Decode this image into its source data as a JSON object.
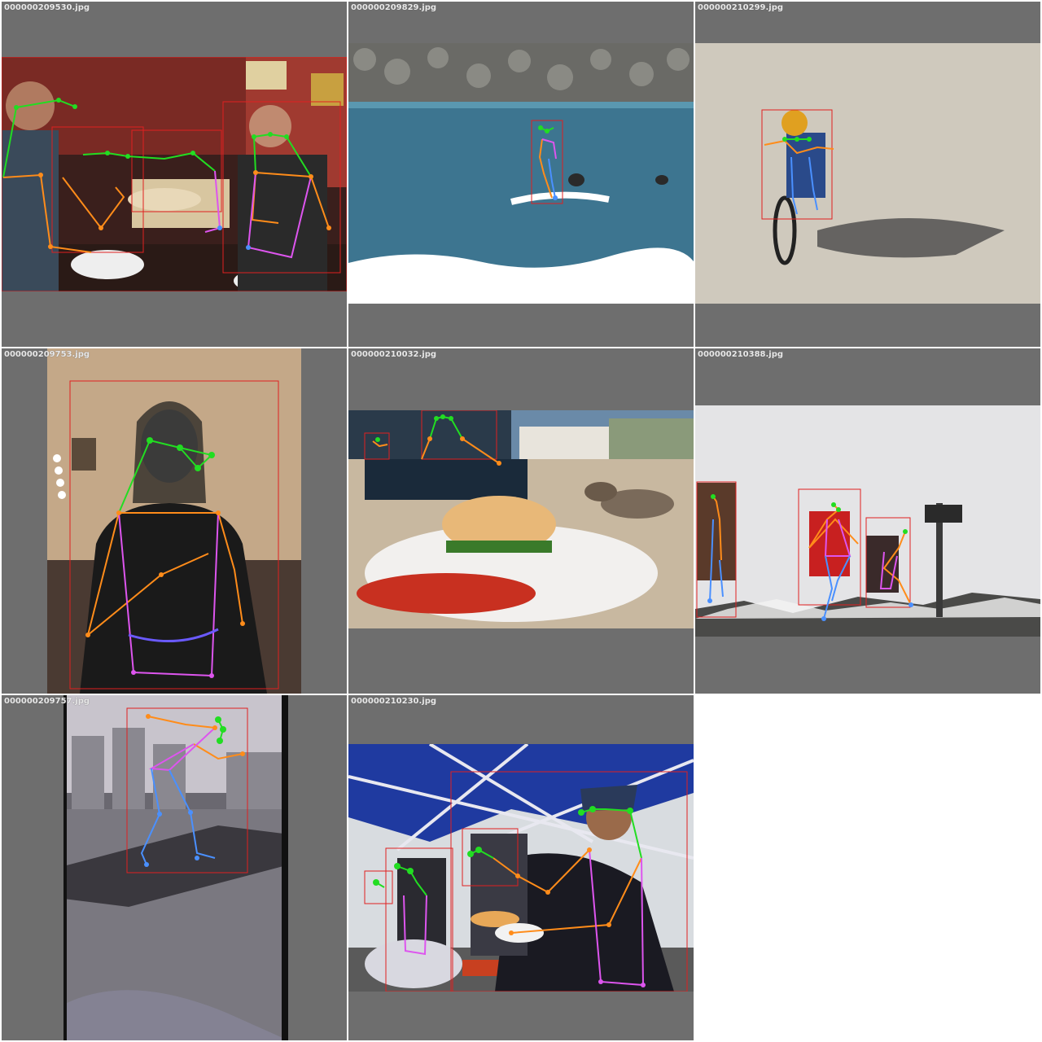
{
  "grid": {
    "background": "#ffffff",
    "tile_background": "#6e6e6e",
    "tiles": [
      {
        "filename": "000000209530.jpg",
        "scene": "restaurant-group-photo"
      },
      {
        "filename": "000000209829.jpg",
        "scene": "surfer-on-waves"
      },
      {
        "filename": "000000210299.jpg",
        "scene": "child-riding-bicycle"
      },
      {
        "filename": "000000209753.jpg",
        "scene": "woman-looking-at-phone"
      },
      {
        "filename": "000000210032.jpg",
        "scene": "burger-plate-with-sparrows"
      },
      {
        "filename": "000000210388.jpg",
        "scene": "hikers-on-snowy-summit"
      },
      {
        "filename": "000000209757.jpg",
        "scene": "skateboarder-on-ledge"
      },
      {
        "filename": "000000210230.jpg",
        "scene": "navy-sailors-serving-food"
      }
    ]
  },
  "annotation_colors": {
    "bbox": "#e02020",
    "head": "#22dd22",
    "arms": "#ff8c1a",
    "torso": "#dd55ee",
    "legs": "#4a90ff"
  }
}
